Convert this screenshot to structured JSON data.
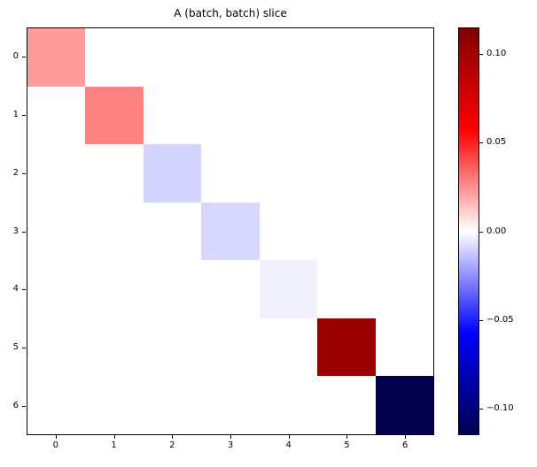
{
  "title": "A (batch, batch) slice",
  "chart_data": {
    "type": "heatmap",
    "title": "A (batch, batch) slice",
    "x_tick_labels": [
      "0",
      "1",
      "2",
      "3",
      "4",
      "5",
      "6"
    ],
    "y_tick_labels": [
      "0",
      "1",
      "2",
      "3",
      "4",
      "5",
      "6"
    ],
    "colormap": "seismic",
    "vmin": -0.115,
    "vmax": 0.115,
    "matrix": [
      [
        0.022,
        0,
        0,
        0,
        0,
        0,
        0
      ],
      [
        0,
        0.028,
        0,
        0,
        0,
        0,
        0
      ],
      [
        0,
        0,
        -0.01,
        0,
        0,
        0,
        0
      ],
      [
        0,
        0,
        0,
        -0.009,
        0,
        0,
        0
      ],
      [
        0,
        0,
        0,
        0,
        -0.003,
        0,
        0
      ],
      [
        0,
        0,
        0,
        0,
        0,
        0.103,
        0
      ],
      [
        0,
        0,
        0,
        0,
        0,
        0,
        -0.115
      ]
    ],
    "colorbar": {
      "tick_labels": [
        "0.10",
        "0.05",
        "0.00",
        "−0.05",
        "−0.10"
      ],
      "tick_values": [
        0.1,
        0.05,
        0.0,
        -0.05,
        -0.1
      ]
    },
    "background_color": "#ffffff",
    "grid": false,
    "legend_position": "colorbar-right"
  }
}
